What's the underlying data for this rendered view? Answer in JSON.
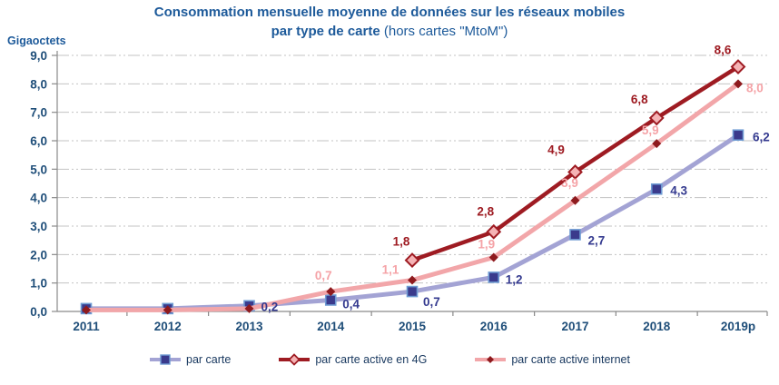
{
  "title": {
    "line1": "Consommation mensuelle moyenne de données sur les réseaux mobiles",
    "line2_bold": "par type de carte",
    "line2_normal": "(hors cartes \"MtoM\")"
  },
  "axis": {
    "unit_label": "Gigaoctets",
    "y_tick_labels": [
      "0,0",
      "1,0",
      "2,0",
      "3,0",
      "4,0",
      "5,0",
      "6,0",
      "7,0",
      "8,0",
      "9,0"
    ]
  },
  "colors": {
    "title_text": "#1d5a9a",
    "axis_text": "#1f4e79",
    "legend_text": "#17375e",
    "gridline": "#c3c3c3",
    "axis_line": "#8a8a8a"
  },
  "chart_data": {
    "type": "line",
    "title": "Consommation mensuelle moyenne de données sur les réseaux mobiles par type de carte (hors cartes \"MtoM\")",
    "ylabel": "Gigaoctets",
    "xlabel": "",
    "ylim": [
      0,
      9
    ],
    "ytick_step": 1,
    "grid": true,
    "legend_position": "bottom",
    "categories": [
      "2011",
      "2012",
      "2013",
      "2014",
      "2015",
      "2016",
      "2017",
      "2018",
      "2019p"
    ],
    "series": [
      {
        "name": "par carte",
        "color": "#a3a3d4",
        "marker": "square",
        "marker_fill": "#3a3a8c",
        "marker_stroke": "#6e9bd3",
        "label_color": "#343a8f",
        "values": [
          0.1,
          0.1,
          0.2,
          0.4,
          0.7,
          1.2,
          2.7,
          4.3,
          6.2
        ],
        "labels": [
          null,
          null,
          "0,2",
          "0,4",
          "0,7",
          "1,2",
          "2,7",
          "4,3",
          "6,2"
        ]
      },
      {
        "name": "par carte active en 4G",
        "color": "#9e1b22",
        "marker": "diamond-open",
        "marker_fill": "#f5b3b5",
        "marker_stroke": "#9e1b22",
        "label_color": "#9e1b22",
        "values": [
          null,
          null,
          null,
          null,
          1.8,
          2.8,
          4.9,
          6.8,
          8.6
        ],
        "labels": [
          null,
          null,
          null,
          null,
          "1,8",
          "2,8",
          "4,9",
          "6,8",
          "8,6"
        ]
      },
      {
        "name": "par carte active internet",
        "color": "#f2a6a9",
        "marker": "diamond-small",
        "marker_fill": "#8e1a1e",
        "marker_stroke": "#8e1a1e",
        "label_color": "#f5a3a7",
        "values": [
          0.05,
          0.05,
          0.1,
          0.7,
          1.1,
          1.9,
          3.9,
          5.9,
          8.0
        ],
        "labels": [
          null,
          null,
          null,
          "0,7",
          "1,1",
          "1,9",
          "3,9",
          "5,9",
          "8,0"
        ]
      }
    ]
  }
}
